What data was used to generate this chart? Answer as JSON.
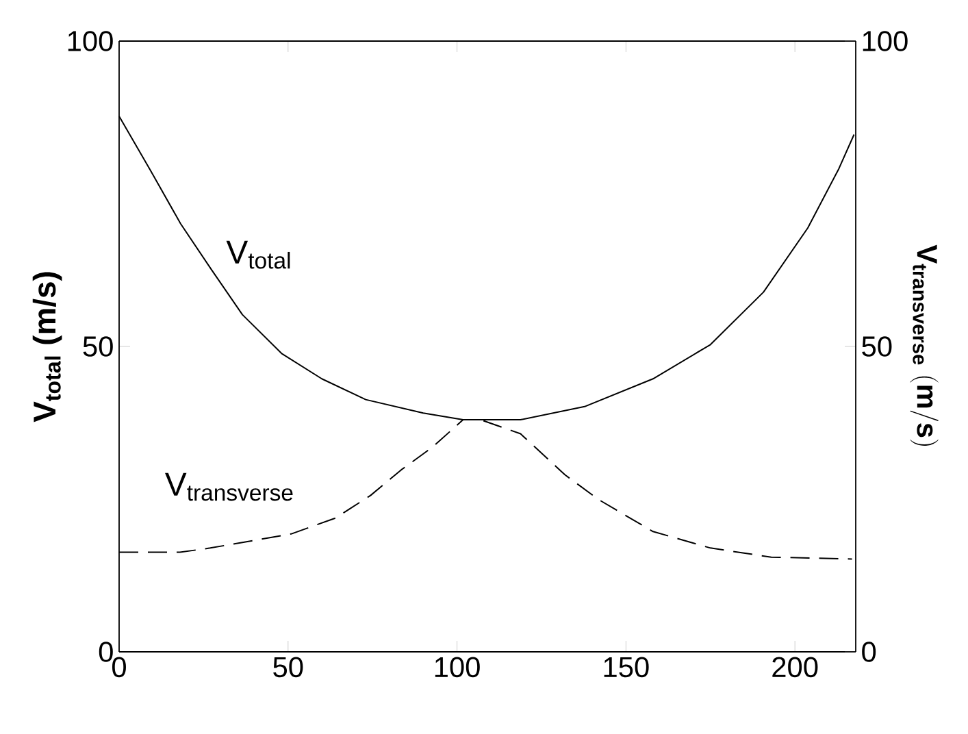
{
  "chart_data": {
    "type": "line",
    "ylabel": "V$_{total}$ (m/s)",
    "y2label": "\\mathbf{V_{transverse}\\ (m/s)}",
    "xlim": [
      0,
      218
    ],
    "xticks": [
      0,
      50,
      100,
      150,
      200
    ],
    "ylim": [
      0,
      100
    ],
    "yticks": [
      0,
      50,
      100
    ],
    "y2lim": [
      0,
      100
    ],
    "y2ticks": [
      0,
      50,
      100
    ],
    "series": [
      {
        "name": "\\mathrm{V_{total}}",
        "color": "#000000",
        "line_style": "solid",
        "x": [
          0,
          9,
          18.2,
          27.3,
          36.5,
          48.2,
          60,
          73,
          90,
          101.8,
          118.8,
          138,
          158,
          175,
          190.7,
          203.8,
          213,
          217.5
        ],
        "values": [
          87.7,
          79.1,
          70.1,
          62.6,
          55.2,
          48.8,
          44.7,
          41.3,
          39.1,
          38.0,
          38.0,
          40.2,
          44.7,
          50.3,
          58.9,
          69.4,
          79.1,
          84.7
        ]
      },
      {
        "name": "\\mathrm{V_{transverse}}",
        "color": "#000000",
        "line_style": "dashed",
        "axis": "y2",
        "x": [
          0,
          18,
          27,
          50.9,
          64,
          74.4,
          83.5,
          92.7,
          101.8,
          107,
          118.8,
          131.9,
          142,
          158,
          175,
          193,
          216.9
        ],
        "values": [
          16.3,
          16.3,
          17.0,
          19.3,
          21.9,
          25.6,
          29.8,
          33.5,
          38.0,
          38.0,
          35.7,
          29.0,
          24.9,
          19.7,
          17.0,
          15.5,
          15.2
        ]
      }
    ]
  }
}
